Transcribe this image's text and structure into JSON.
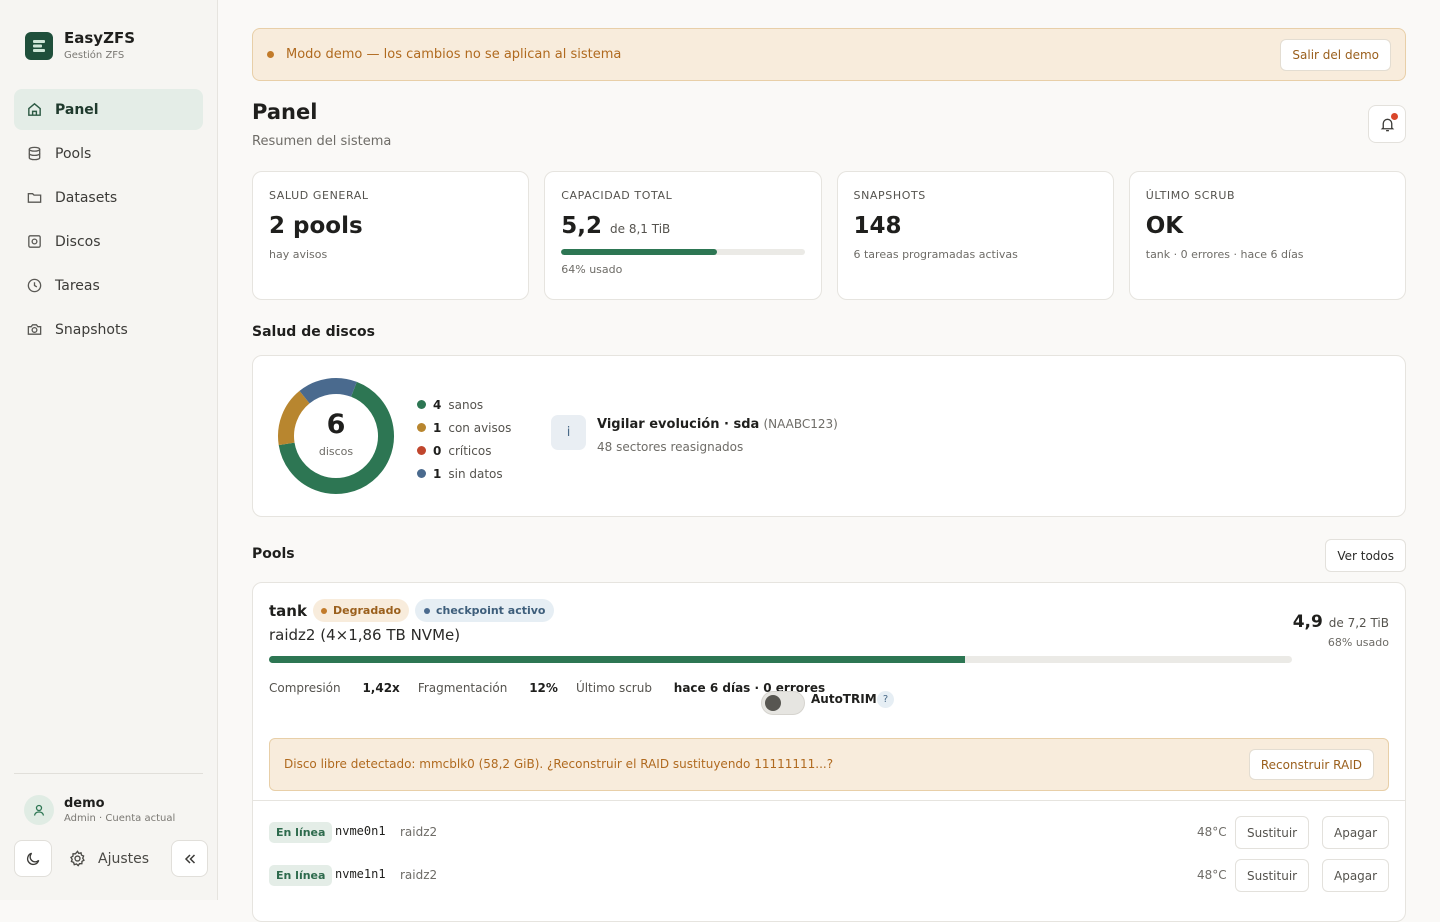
{
  "app": {
    "name": "EasyZFS",
    "subtitle": "Gestión ZFS"
  },
  "sidebar": {
    "items": [
      {
        "label": "Panel",
        "icon": "home-icon",
        "active": true
      },
      {
        "label": "Pools",
        "icon": "database-icon"
      },
      {
        "label": "Datasets",
        "icon": "folder-icon"
      },
      {
        "label": "Discos",
        "icon": "disk-icon"
      },
      {
        "label": "Tareas",
        "icon": "clock-icon"
      },
      {
        "label": "Snapshots",
        "icon": "camera-icon"
      }
    ],
    "user": {
      "name": "demo",
      "role": "Admin · Cuenta actual"
    },
    "settings_label": "Ajustes"
  },
  "banner": {
    "text": "Modo demo — los cambios no se aplican al sistema",
    "exit_label": "Salir del demo"
  },
  "page": {
    "title": "Panel",
    "subtitle": "Resumen del sistema"
  },
  "cards": {
    "health": {
      "label": "SALUD GENERAL",
      "value": "2 pools",
      "sub": "hay avisos"
    },
    "capacity": {
      "label": "CAPACIDAD TOTAL",
      "value": "5,2",
      "of": "de 8,1 TiB",
      "used_fraction": 0.64,
      "sub": "64% usado"
    },
    "snapshots": {
      "label": "SNAPSHOTS",
      "value": "148",
      "sub": "6 tareas programadas activas"
    },
    "scrub": {
      "label": "ÚLTIMO SCRUB",
      "value": "OK",
      "sub": "tank · 0 errores · hace 6 días"
    }
  },
  "disk_health": {
    "title": "Salud de discos",
    "total": "6",
    "total_label": "discos",
    "legend": [
      {
        "count": "4",
        "label": "sanos",
        "color": "#2d7653"
      },
      {
        "count": "1",
        "label": "con avisos",
        "color": "#b8862f"
      },
      {
        "count": "0",
        "label": "críticos",
        "color": "#c0462d"
      },
      {
        "count": "1",
        "label": "sin datos",
        "color": "#4a6a8e"
      }
    ],
    "alert": {
      "icon": "info-icon",
      "title": "Vigilar evolución · sda",
      "serial": "(NAABC123)",
      "detail": "48 sectores reasignados"
    }
  },
  "pools": {
    "title": "Pools",
    "view_all": "Ver todos",
    "pool": {
      "name": "tank",
      "status_badge": "Degradado",
      "checkpoint_badge": "checkpoint activo",
      "layout": "raidz2 (4×1,86 TB NVMe)",
      "used": "4,9",
      "of": "de 7,2 TiB",
      "used_pct_label": "68% usado",
      "used_fraction": 0.68,
      "compression_label": "Compresión",
      "compression": "1,42x",
      "fragmentation_label": "Fragmentación",
      "fragmentation": "12%",
      "scrub_label": "Último scrub",
      "scrub": "hace 6 días · 0 errores",
      "autotrim_label": "AutoTRIM",
      "autotrim_on": false,
      "help": "?",
      "free_disk_notice": "Disco libre detectado: mmcblk0 (58,2 GiB). ¿Reconstruir el RAID sustituyendo 11111111...?",
      "rebuild_label": "Reconstruir RAID",
      "disks": [
        {
          "status": "En línea",
          "device": "nvme0n1",
          "vdev": "raidz2",
          "temp": "48°C",
          "replace": "Sustituir",
          "poweroff": "Apagar"
        },
        {
          "status": "En línea",
          "device": "nvme1n1",
          "vdev": "raidz2",
          "temp": "48°C",
          "replace": "Sustituir",
          "poweroff": "Apagar"
        }
      ]
    }
  }
}
